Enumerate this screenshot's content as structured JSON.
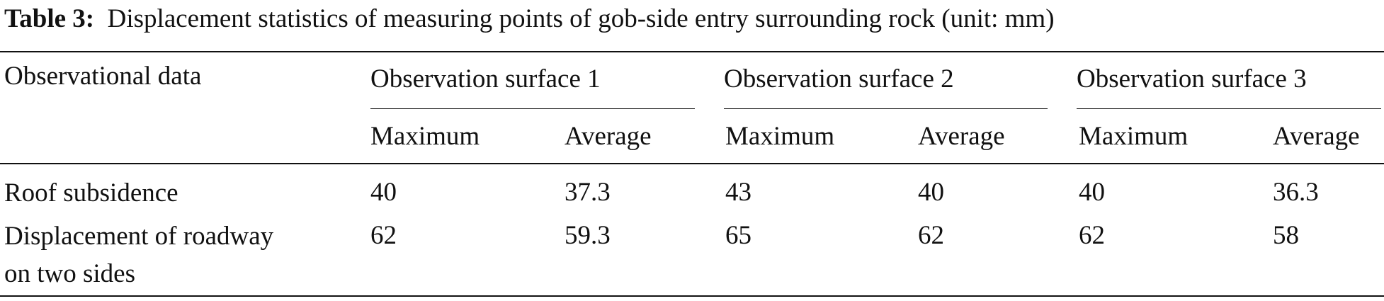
{
  "caption": {
    "label": "Table 3:",
    "text": "Displacement statistics of measuring points of gob-side entry surrounding rock (unit: mm)"
  },
  "table": {
    "corner": "Observational data",
    "groups": [
      "Observation surface 1",
      "Observation surface 2",
      "Observation surface 3"
    ],
    "subheaders": [
      "Maximum",
      "Average",
      "Maximum",
      "Average",
      "Maximum",
      "Average"
    ],
    "rows": [
      [
        "Roof subsidence",
        40,
        37.3,
        43,
        40,
        40,
        36.3
      ],
      [
        "Displacement of roadway on two sides",
        62,
        59.3,
        65,
        62,
        62,
        58
      ]
    ]
  }
}
